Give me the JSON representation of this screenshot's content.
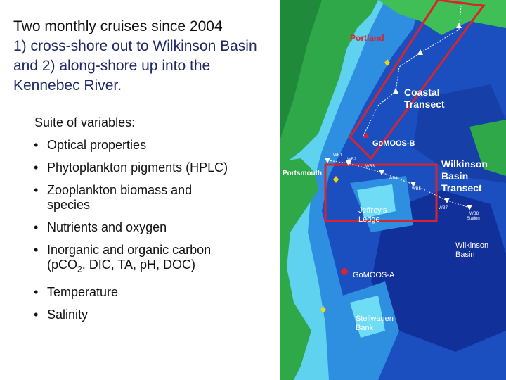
{
  "title": {
    "line1": "Two monthly cruises since 2004",
    "line2": "1) cross-shore out to Wilkinson Basin and 2) along-shore up into the Kennebec River."
  },
  "suite_label": "Suite of variables:",
  "variables": [
    {
      "text": "Optical properties"
    },
    {
      "text": "Phytoplankton pigments (HPLC)"
    },
    {
      "text": "Zooplankton biomass and species"
    },
    {
      "text": "Nutrients and oxygen"
    },
    {
      "text_before": "Inorganic and organic carbon (pCO",
      "sub": "2",
      "text_after": ", DIC, TA, pH, DOC)"
    },
    {
      "text": "Temperature"
    },
    {
      "text": "Salinity"
    }
  ],
  "bullet": "•",
  "map": {
    "labels": {
      "portland": "Portland",
      "coastal_transect_1": "Coastal",
      "coastal_transect_2": "Transect",
      "gomoos_b": "GoMOOS-B",
      "portsmouth": "Portsmouth",
      "wilkinson_transect_1": "Wilkinson",
      "wilkinson_transect_2": "Basin",
      "wilkinson_transect_3": "Transect",
      "jeffreys_1": "Jeffrey's",
      "jeffreys_2": "Ledge",
      "wilkinson_basin_1": "Wilkinson",
      "wilkinson_basin_2": "Basin",
      "gomoos_a": "GoMOOS-A",
      "stellwagen_1": "Stellwagen",
      "stellwagen_2": "Bank",
      "wb1": "WB1",
      "wb2": "WB2",
      "wb3": "WB3",
      "wb4": "WB4",
      "wb5": "WB5",
      "wb7": "WB7",
      "wb8": "WB8",
      "wb8_sub": "Station"
    },
    "colors": {
      "land": "#2fa84a",
      "shallow": "#5fd2f0",
      "mid": "#2e8fe0",
      "deep": "#1b4fc0",
      "deepest": "#12309a",
      "box": "#d8242c"
    }
  }
}
